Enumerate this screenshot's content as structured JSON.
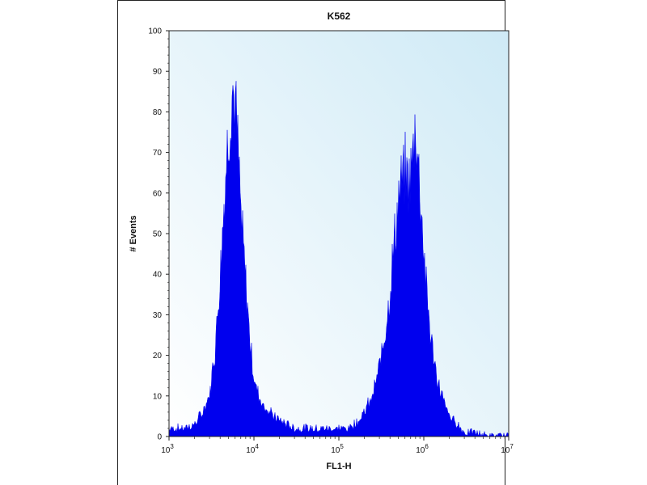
{
  "chart_data": {
    "type": "histogram",
    "title": "K562",
    "xlabel": "FL1-H",
    "ylabel": "# Events",
    "x_scale": "log",
    "xlim": [
      1000,
      10000000
    ],
    "ylim": [
      0,
      100
    ],
    "y_ticks": [
      0,
      10,
      20,
      30,
      40,
      50,
      60,
      70,
      80,
      90,
      100
    ],
    "x_ticks": [
      {
        "base": "10",
        "exp": "3",
        "value": 1000
      },
      {
        "base": "10",
        "exp": "4",
        "value": 10000
      },
      {
        "base": "10",
        "exp": "5",
        "value": 100000
      },
      {
        "base": "10",
        "exp": "6",
        "value": 1000000
      },
      {
        "base": "10",
        "exp": "7",
        "value": 10000000
      }
    ],
    "grid": false,
    "series": [
      {
        "color": "#0000ee",
        "points": [
          [
            1000,
            2
          ],
          [
            1500,
            2
          ],
          [
            2000,
            3
          ],
          [
            2500,
            6
          ],
          [
            3000,
            10
          ],
          [
            3500,
            22
          ],
          [
            4000,
            40
          ],
          [
            4500,
            60
          ],
          [
            5000,
            75
          ],
          [
            5500,
            86
          ],
          [
            6000,
            82
          ],
          [
            6500,
            70
          ],
          [
            7000,
            55
          ],
          [
            8000,
            38
          ],
          [
            9000,
            24
          ],
          [
            10000,
            14
          ],
          [
            12000,
            9
          ],
          [
            15000,
            6
          ],
          [
            20000,
            4
          ],
          [
            30000,
            2
          ],
          [
            50000,
            2
          ],
          [
            80000,
            2
          ],
          [
            100000,
            2
          ],
          [
            130000,
            2
          ],
          [
            170000,
            4
          ],
          [
            200000,
            6
          ],
          [
            250000,
            10
          ],
          [
            300000,
            17
          ],
          [
            350000,
            26
          ],
          [
            400000,
            36
          ],
          [
            450000,
            48
          ],
          [
            500000,
            58
          ],
          [
            550000,
            62
          ],
          [
            600000,
            65
          ],
          [
            650000,
            63
          ],
          [
            700000,
            64
          ],
          [
            750000,
            70
          ],
          [
            800000,
            79
          ],
          [
            850000,
            68
          ],
          [
            900000,
            62
          ],
          [
            950000,
            55
          ],
          [
            1000000,
            45
          ],
          [
            1100000,
            34
          ],
          [
            1200000,
            25
          ],
          [
            1400000,
            15
          ],
          [
            1700000,
            9
          ],
          [
            2000000,
            5
          ],
          [
            2500000,
            3
          ],
          [
            3000000,
            1
          ],
          [
            4000000,
            1
          ],
          [
            6000000,
            0
          ],
          [
            10000000,
            0
          ]
        ]
      }
    ]
  },
  "colors": {
    "fill": "#0000ee",
    "plot_bg_left": "#ffffff",
    "plot_bg_right": "#cfeaf6"
  }
}
